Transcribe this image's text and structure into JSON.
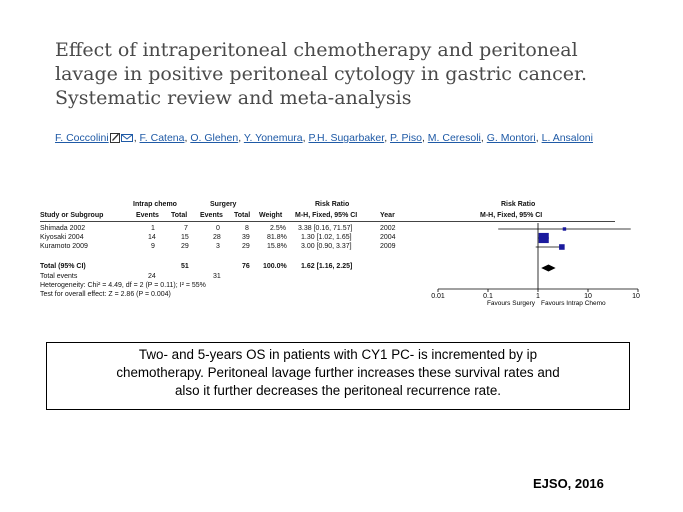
{
  "title": {
    "line1": "Effect of intraperitoneal chemotherapy and peritoneal",
    "line2": "lavage in positive peritoneal cytology in gastric cancer.",
    "line3": "Systematic review and meta-analysis"
  },
  "authors": [
    "F. Coccolini",
    "F. Catena",
    "O. Glehen",
    "Y. Yonemura",
    "P.H. Sugarbaker",
    "P. Piso",
    "M. Ceresoli",
    "G. Montori",
    "L. Ansaloni"
  ],
  "forest": {
    "header_groups": {
      "intrap": "Intrap chemo",
      "surgery": "Surgery",
      "rr": "Risk Ratio",
      "rr_plot": "Risk Ratio"
    },
    "headers": {
      "study": "Study or Subgroup",
      "events1": "Events",
      "total1": "Total",
      "events2": "Events",
      "total2": "Total",
      "weight": "Weight",
      "method": "M-H, Fixed, 95% CI",
      "year": "Year",
      "plot_method": "M-H, Fixed, 95% CI"
    },
    "studies": [
      {
        "name": "Shimada 2002",
        "e1": "1",
        "t1": "7",
        "e2": "0",
        "t2": "8",
        "weight": "2.5%",
        "rr": "3.38 [0.16, 71.57]",
        "year": "2002"
      },
      {
        "name": "Kiyosaki 2004",
        "e1": "14",
        "t1": "15",
        "e2": "28",
        "t2": "39",
        "weight": "81.8%",
        "rr": "1.30 [1.02, 1.65]",
        "year": "2004"
      },
      {
        "name": "Kuramoto 2009",
        "e1": "9",
        "t1": "29",
        "e2": "3",
        "t2": "29",
        "weight": "15.8%",
        "rr": "3.00 [0.90, 3.37]",
        "year": "2009"
      }
    ],
    "total": {
      "name": "Total (95% CI)",
      "t1": "51",
      "t2": "76",
      "weight": "100.0%",
      "rr": "1.62 [1.16, 2.25]"
    },
    "total_events": {
      "label": "Total events",
      "e1": "24",
      "e2": "31"
    },
    "heterogeneity": "Heterogeneity: Chi² = 4.49, df = 2 (P = 0.11); I² = 55%",
    "overall_effect": "Test for overall effect: Z = 2.86 (P = 0.004)",
    "axis_ticks": [
      "0.01",
      "0.1",
      "1",
      "10",
      "100"
    ],
    "favours_left": "Favours Surgery",
    "favours_right": "Favours Intrap Chemo"
  },
  "chart_data": {
    "type": "scatter",
    "scale": "log",
    "xlim": [
      0.01,
      100
    ],
    "ticks": [
      0.01,
      0.1,
      1,
      10,
      100
    ],
    "points": [
      {
        "study": "Shimada 2002",
        "rr": 3.38,
        "lo": 0.16,
        "hi": 71.57,
        "weight": 2.5
      },
      {
        "study": "Kiyosaki 2004",
        "rr": 1.3,
        "lo": 1.02,
        "hi": 1.65,
        "weight": 81.8
      },
      {
        "study": "Kuramoto 2009",
        "rr": 3.0,
        "lo": 0.9,
        "hi": 3.37,
        "weight": 15.8
      }
    ],
    "pooled": {
      "rr": 1.62,
      "lo": 1.16,
      "hi": 2.25
    }
  },
  "summary": {
    "line1": "Two- and 5-years OS in patients with CY1 PC- is incremented by ip",
    "line2": "chemotherapy. Peritoneal lavage further increases these survival rates and",
    "line3": "also it further decreases the peritoneal recurrence rate."
  },
  "citation": "EJSO, 2016",
  "colors": {
    "author_link": "#1f5aa6",
    "marker": "#1a1a9e",
    "title": "#4a4a4a"
  }
}
